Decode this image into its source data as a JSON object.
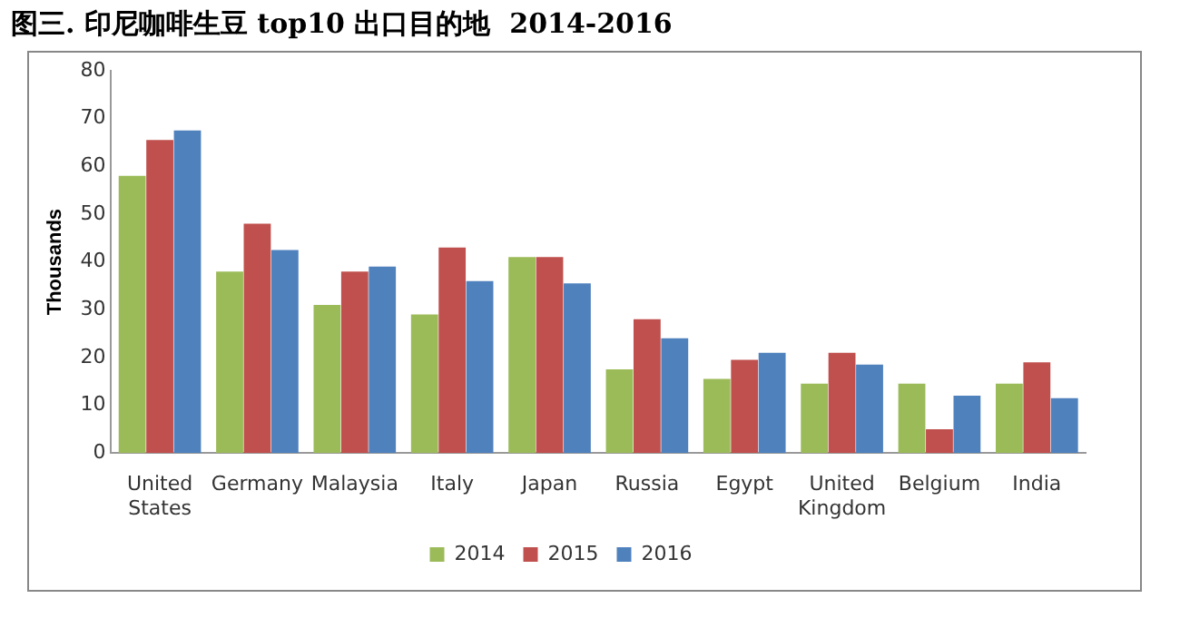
{
  "chart_data": {
    "type": "bar",
    "title": "图三. 印尼咖啡生豆 top10 出口目的地  2014-2016",
    "ylabel": "Thousands",
    "categories": [
      "United States",
      "Germany",
      "Malaysia",
      "Italy",
      "Japan",
      "Russia",
      "Egypt",
      "United Kingdom",
      "Belgium",
      "India"
    ],
    "series": [
      {
        "name": "2014",
        "color": "#9bbb59",
        "values": [
          58,
          38,
          31,
          29,
          41,
          17.5,
          15.5,
          14.5,
          14.5,
          14.5
        ]
      },
      {
        "name": "2015",
        "color": "#c0504d",
        "values": [
          65.5,
          48,
          38,
          43,
          41,
          28,
          19.5,
          21,
          5,
          19
        ]
      },
      {
        "name": "2016",
        "color": "#4f81bd",
        "values": [
          67.5,
          42.5,
          39,
          36,
          35.5,
          24,
          21,
          18.5,
          12,
          11.5
        ]
      }
    ],
    "ylim": [
      0,
      80
    ],
    "yticks": [
      0,
      10,
      20,
      30,
      40,
      50,
      60,
      70,
      80
    ],
    "grid": false,
    "legend": "bottom"
  }
}
